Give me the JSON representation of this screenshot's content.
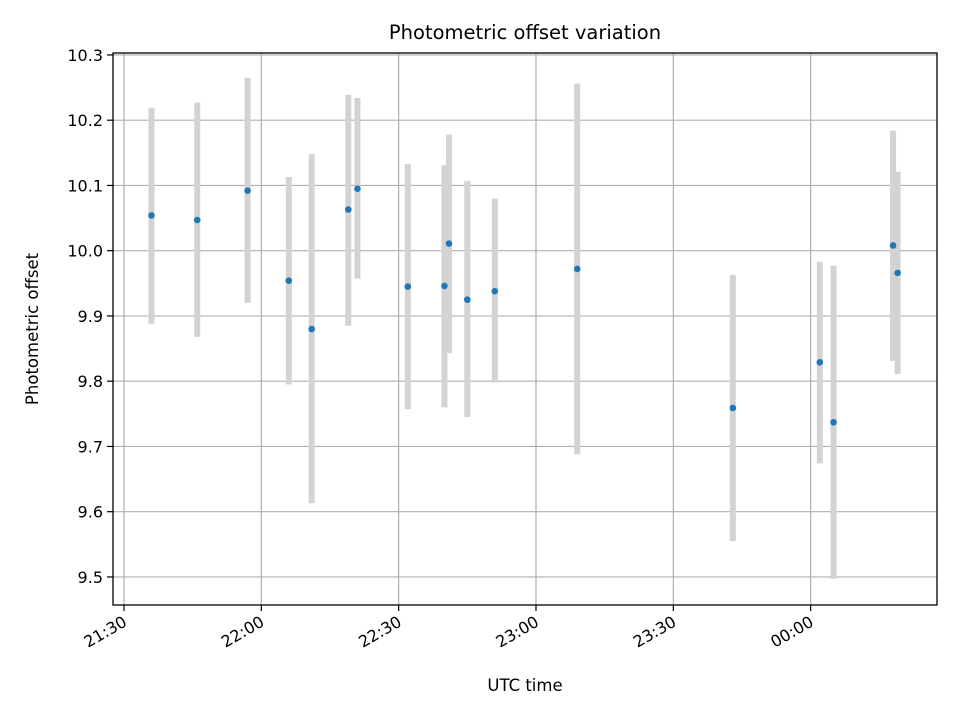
{
  "chart_data": {
    "type": "scatter",
    "title": "Photometric offset variation",
    "xlabel": "UTC time",
    "ylabel": "Photometric offset",
    "x_unit": "UTC time (HH:MM)",
    "x_ticks": [
      "21:30",
      "22:00",
      "22:30",
      "23:00",
      "23:30",
      "00:00"
    ],
    "y_ticks": [
      "9.5",
      "9.6",
      "9.7",
      "9.8",
      "9.9",
      "10.0",
      "10.1",
      "10.2",
      "10.3"
    ],
    "xlim": [
      "21:27.6",
      "00:27.6"
    ],
    "ylim": [
      9.457,
      10.303
    ],
    "grid": true,
    "error_bar_color": "#d3d3d3",
    "point_color": "#1f77b4",
    "points": [
      {
        "x": "21:36",
        "y": 10.054,
        "ylow": 9.888,
        "yhigh": 10.219
      },
      {
        "x": "21:46",
        "y": 10.047,
        "ylow": 9.868,
        "yhigh": 10.227
      },
      {
        "x": "21:57",
        "y": 10.092,
        "ylow": 9.92,
        "yhigh": 10.265
      },
      {
        "x": "22:06",
        "y": 9.954,
        "ylow": 9.795,
        "yhigh": 10.113
      },
      {
        "x": "22:11",
        "y": 9.88,
        "ylow": 9.613,
        "yhigh": 10.148
      },
      {
        "x": "22:19",
        "y": 10.063,
        "ylow": 9.885,
        "yhigh": 10.239
      },
      {
        "x": "22:21",
        "y": 10.095,
        "ylow": 9.957,
        "yhigh": 10.234
      },
      {
        "x": "22:32",
        "y": 9.945,
        "ylow": 9.757,
        "yhigh": 10.133
      },
      {
        "x": "22:40",
        "y": 9.946,
        "ylow": 9.76,
        "yhigh": 10.131
      },
      {
        "x": "22:41",
        "y": 10.011,
        "ylow": 9.843,
        "yhigh": 10.178
      },
      {
        "x": "22:45",
        "y": 9.925,
        "ylow": 9.745,
        "yhigh": 10.107
      },
      {
        "x": "22:51",
        "y": 9.938,
        "ylow": 9.798,
        "yhigh": 10.08
      },
      {
        "x": "23:09",
        "y": 9.972,
        "ylow": 9.688,
        "yhigh": 10.256
      },
      {
        "x": "23:43",
        "y": 9.759,
        "ylow": 9.555,
        "yhigh": 9.963
      },
      {
        "x": "00:02",
        "y": 9.829,
        "ylow": 9.674,
        "yhigh": 9.983
      },
      {
        "x": "00:05",
        "y": 9.737,
        "ylow": 9.497,
        "yhigh": 9.977
      },
      {
        "x": "00:18",
        "y": 10.008,
        "ylow": 9.831,
        "yhigh": 10.184
      },
      {
        "x": "00:19",
        "y": 9.966,
        "ylow": 9.811,
        "yhigh": 10.121
      }
    ]
  }
}
